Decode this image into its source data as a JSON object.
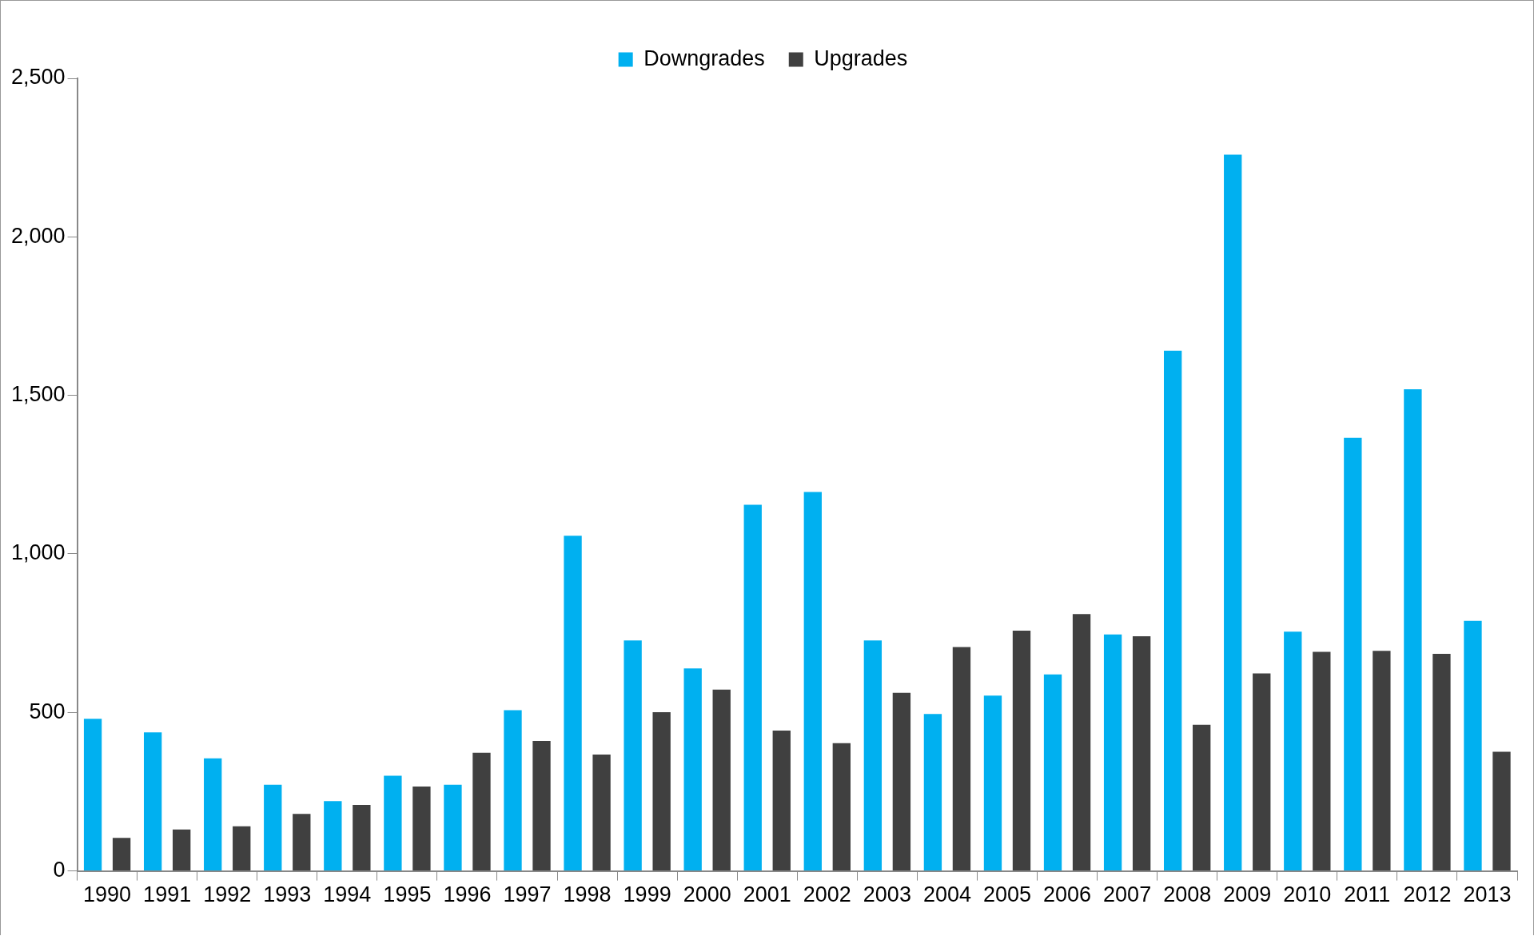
{
  "chart_data": {
    "type": "bar",
    "categories": [
      "1990",
      "1991",
      "1992",
      "1993",
      "1994",
      "1995",
      "1996",
      "1997",
      "1998",
      "1999",
      "2000",
      "2001",
      "2002",
      "2003",
      "2004",
      "2005",
      "2006",
      "2007",
      "2008",
      "2009",
      "2010",
      "2011",
      "2012",
      "2013"
    ],
    "series": [
      {
        "name": "Downgrades",
        "color": "#00b0f0",
        "values": [
          480,
          437,
          355,
          272,
          220,
          300,
          272,
          507,
          1057,
          727,
          639,
          1155,
          1195,
          727,
          495,
          553,
          620,
          746,
          1641,
          2259,
          755,
          1366,
          1519,
          789
        ]
      },
      {
        "name": "Upgrades",
        "color": "#404040",
        "values": [
          104,
          131,
          141,
          180,
          208,
          266,
          373,
          410,
          367,
          501,
          572,
          443,
          403,
          562,
          706,
          758,
          810,
          740,
          461,
          623,
          691,
          694,
          685,
          376
        ]
      }
    ],
    "ylim": [
      0,
      2500
    ],
    "yticks": [
      0,
      500,
      {
        "value": 1000,
        "label": "1,000"
      },
      {
        "value": 1500,
        "label": "1,500"
      },
      {
        "value": 2000,
        "label": "2,000"
      },
      {
        "value": 2500,
        "label": "2,500"
      }
    ],
    "grid": false,
    "legend": "top"
  }
}
